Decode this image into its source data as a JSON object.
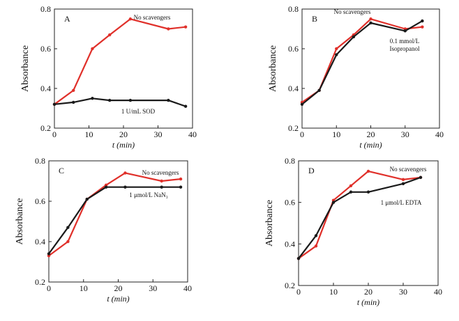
{
  "chart_data": [
    {
      "type": "line",
      "panel_label": "A",
      "xlabel": "t (min)",
      "ylabel": "Absorbance",
      "xlim": [
        0,
        40
      ],
      "ylim": [
        0.2,
        0.8
      ],
      "xticks": [
        "0",
        "10",
        "20",
        "30",
        "40"
      ],
      "yticks": [
        "0.2",
        "0.4",
        "0.6",
        "0.8"
      ],
      "series": [
        {
          "name": "No scavengers",
          "color": "#e0302a",
          "x": [
            0,
            5.5,
            11,
            16,
            22,
            33,
            38
          ],
          "y": [
            0.32,
            0.39,
            0.6,
            0.67,
            0.75,
            0.7,
            0.71
          ]
        },
        {
          "name": "1 U/mL SOD",
          "color": "#1a1a1a",
          "x": [
            0,
            5.5,
            11,
            16,
            22,
            33,
            38
          ],
          "y": [
            0.32,
            0.33,
            0.35,
            0.34,
            0.34,
            0.34,
            0.31
          ]
        }
      ]
    },
    {
      "type": "line",
      "panel_label": "B",
      "xlabel": "t (min)",
      "ylabel": "Absorbance",
      "xlim": [
        0,
        40
      ],
      "ylim": [
        0.2,
        0.8
      ],
      "xticks": [
        "0",
        "10",
        "20",
        "30",
        "40"
      ],
      "yticks": [
        "0.2",
        "0.4",
        "0.6",
        "0.8"
      ],
      "series": [
        {
          "name": "No scavengers",
          "color": "#e0302a",
          "x": [
            0,
            5,
            10,
            15,
            20,
            30,
            35
          ],
          "y": [
            0.33,
            0.39,
            0.6,
            0.67,
            0.75,
            0.7,
            0.71
          ]
        },
        {
          "name": "0.1 mmol/L Isopropanol",
          "color": "#1a1a1a",
          "x": [
            0,
            5,
            10,
            15,
            20,
            30,
            35
          ],
          "y": [
            0.32,
            0.39,
            0.57,
            0.66,
            0.73,
            0.69,
            0.74
          ]
        }
      ]
    },
    {
      "type": "line",
      "panel_label": "C",
      "xlabel": "t (min)",
      "ylabel": "Absorbance",
      "xlim": [
        0,
        40
      ],
      "ylim": [
        0.2,
        0.8
      ],
      "xticks": [
        "0",
        "10",
        "20",
        "30",
        "40"
      ],
      "yticks": [
        "0.2",
        "0.4",
        "0.6",
        "0.8"
      ],
      "series": [
        {
          "name": "No scavengers",
          "color": "#e0302a",
          "x": [
            0,
            5.5,
            11,
            16.5,
            22,
            32.5,
            38
          ],
          "y": [
            0.33,
            0.4,
            0.61,
            0.68,
            0.74,
            0.7,
            0.71
          ]
        },
        {
          "name": "1 μmol/L NaN₃",
          "color": "#1a1a1a",
          "x": [
            0,
            5.5,
            11,
            16.5,
            22,
            32.5,
            38
          ],
          "y": [
            0.34,
            0.47,
            0.61,
            0.67,
            0.67,
            0.67,
            0.67
          ]
        }
      ]
    },
    {
      "type": "line",
      "panel_label": "D",
      "xlabel": "t (min)",
      "ylabel": "Absorbance",
      "xlim": [
        0,
        40
      ],
      "ylim": [
        0.2,
        0.8
      ],
      "xticks": [
        "0",
        "10",
        "20",
        "30",
        "40"
      ],
      "yticks": [
        "0.2",
        "0.4",
        "0.6",
        "0.8"
      ],
      "series": [
        {
          "name": "No scavengers",
          "color": "#e0302a",
          "x": [
            0,
            5,
            10,
            15,
            20,
            30,
            35
          ],
          "y": [
            0.33,
            0.39,
            0.61,
            0.68,
            0.75,
            0.71,
            0.72
          ]
        },
        {
          "name": "1 μmol/L EDTA",
          "color": "#1a1a1a",
          "x": [
            0,
            5,
            10,
            15,
            20,
            30,
            35
          ],
          "y": [
            0.33,
            0.44,
            0.6,
            0.65,
            0.65,
            0.69,
            0.72
          ]
        }
      ]
    }
  ]
}
